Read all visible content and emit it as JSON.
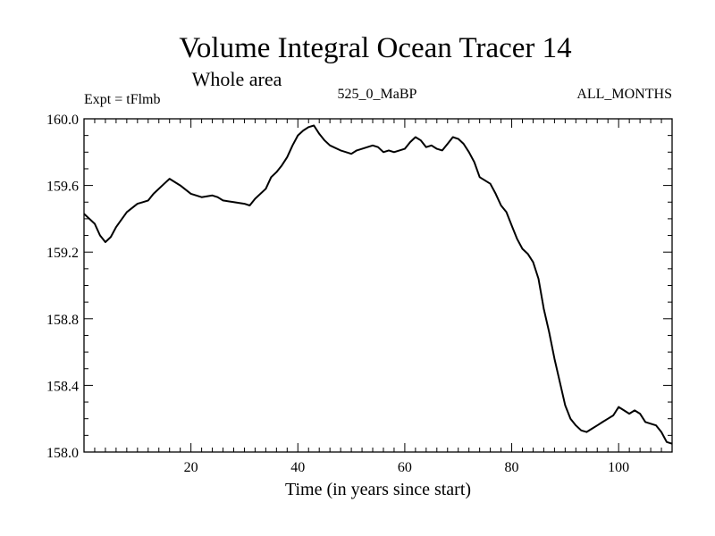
{
  "chart_data": {
    "type": "line",
    "title": "Volume Integral Ocean Tracer 14",
    "subtitle": "Whole area",
    "left_label": "Expt = tFlmb",
    "center_label": "525_0_MaBP",
    "right_label": "ALL_MONTHS",
    "xlabel": "Time (in years since start)",
    "ylabel": "",
    "xlim": [
      0,
      110
    ],
    "ylim": [
      158.0,
      160.0
    ],
    "xticks": [
      20,
      40,
      60,
      80,
      100
    ],
    "yticks": [
      158.0,
      158.4,
      158.8,
      159.2,
      159.6,
      160.0
    ],
    "ytick_labels": [
      "158.0",
      "158.4",
      "158.8",
      "159.2",
      "159.6",
      "160.0"
    ],
    "grid": false,
    "line_color": "#000000",
    "series": [
      {
        "x": [
          0,
          2,
          3,
          4,
          5,
          6,
          8,
          10,
          11,
          12,
          13,
          15,
          16,
          18,
          20,
          22,
          24,
          25,
          26,
          28,
          30,
          31,
          32,
          34,
          35,
          36,
          37,
          38,
          39,
          40,
          41,
          42,
          43,
          44,
          45,
          46,
          48,
          50,
          51,
          52,
          53,
          54,
          55,
          56,
          57,
          58,
          60,
          61,
          62,
          63,
          64,
          65,
          66,
          67,
          68,
          69,
          70,
          71,
          72,
          73,
          74,
          76,
          77,
          78,
          79,
          80,
          81,
          82,
          83,
          84,
          85,
          86,
          87,
          88,
          89,
          90,
          91,
          92,
          93,
          94,
          95,
          96,
          97,
          98,
          99,
          100,
          101,
          102,
          103,
          104,
          105,
          106,
          107,
          108,
          109,
          110
        ],
        "y": [
          159.43,
          159.37,
          159.3,
          159.26,
          159.29,
          159.35,
          159.44,
          159.49,
          159.5,
          159.51,
          159.55,
          159.61,
          159.64,
          159.6,
          159.55,
          159.53,
          159.54,
          159.53,
          159.51,
          159.5,
          159.49,
          159.48,
          159.52,
          159.58,
          159.65,
          159.68,
          159.72,
          159.77,
          159.84,
          159.9,
          159.93,
          159.95,
          159.96,
          159.91,
          159.87,
          159.84,
          159.81,
          159.79,
          159.81,
          159.82,
          159.83,
          159.84,
          159.83,
          159.8,
          159.81,
          159.8,
          159.82,
          159.86,
          159.89,
          159.87,
          159.83,
          159.84,
          159.82,
          159.81,
          159.85,
          159.89,
          159.88,
          159.85,
          159.8,
          159.74,
          159.65,
          159.61,
          159.55,
          159.48,
          159.44,
          159.36,
          159.28,
          159.22,
          159.19,
          159.14,
          159.04,
          158.86,
          158.72,
          158.56,
          158.42,
          158.28,
          158.2,
          158.16,
          158.13,
          158.12,
          158.14,
          158.16,
          158.18,
          158.2,
          158.22,
          158.27,
          158.25,
          158.23,
          158.25,
          158.23,
          158.18,
          158.17,
          158.16,
          158.12,
          158.06,
          158.05
        ]
      }
    ]
  }
}
